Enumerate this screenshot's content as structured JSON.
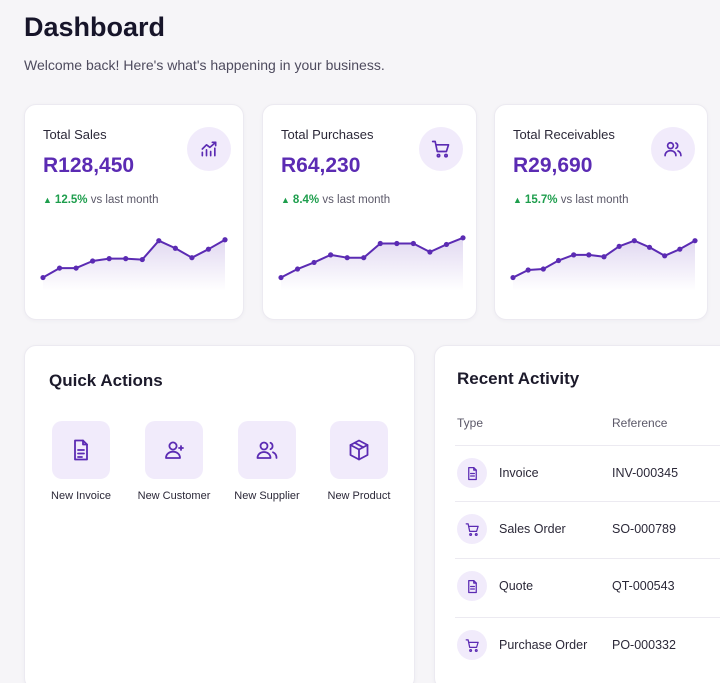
{
  "header": {
    "title": "Dashboard",
    "subtitle": "Welcome back! Here's what's happening in your business."
  },
  "stats": [
    {
      "label": "Total Sales",
      "value": "R128,450",
      "change": "12.5%",
      "change_suffix": "vs last month",
      "icon": "chart-trend-icon",
      "trend": [
        2,
        4,
        4,
        5.5,
        6,
        6,
        5.8,
        9.8,
        8.2,
        6.2,
        8,
        10
      ]
    },
    {
      "label": "Total Purchases",
      "value": "R64,230",
      "change": "8.4%",
      "change_suffix": "vs last month",
      "icon": "shopping-cart-icon",
      "trend": [
        2,
        3.8,
        5.2,
        6.8,
        6.2,
        6.2,
        9.2,
        9.2,
        9.2,
        7.4,
        9,
        10.4
      ]
    },
    {
      "label": "Total Receivables",
      "value": "R29,690",
      "change": "15.7%",
      "change_suffix": "vs last month",
      "icon": "users-icon",
      "trend": [
        2,
        3.6,
        3.8,
        5.6,
        6.8,
        6.8,
        6.4,
        8.6,
        9.8,
        8.4,
        6.6,
        8,
        9.8
      ]
    }
  ],
  "quick_actions": {
    "title": "Quick Actions",
    "items": [
      {
        "label": "New Invoice",
        "icon": "invoice-icon"
      },
      {
        "label": "New Customer",
        "icon": "user-icon"
      },
      {
        "label": "New Supplier",
        "icon": "users-icon"
      },
      {
        "label": "New Product",
        "icon": "box-icon"
      }
    ]
  },
  "recent_activity": {
    "title": "Recent Activity",
    "columns": [
      "Type",
      "Reference"
    ],
    "rows": [
      {
        "type": "Invoice",
        "reference": "INV-000345",
        "icon": "document-icon"
      },
      {
        "type": "Sales Order",
        "reference": "SO-000789",
        "icon": "shopping-cart-icon"
      },
      {
        "type": "Quote",
        "reference": "QT-000543",
        "icon": "document-icon"
      },
      {
        "type": "Purchase Order",
        "reference": "PO-000332",
        "icon": "shopping-cart-icon"
      }
    ]
  },
  "colors": {
    "accent": "#5b2bb3",
    "accent_soft": "#f1ebfb",
    "positive": "#1e9e4d"
  }
}
